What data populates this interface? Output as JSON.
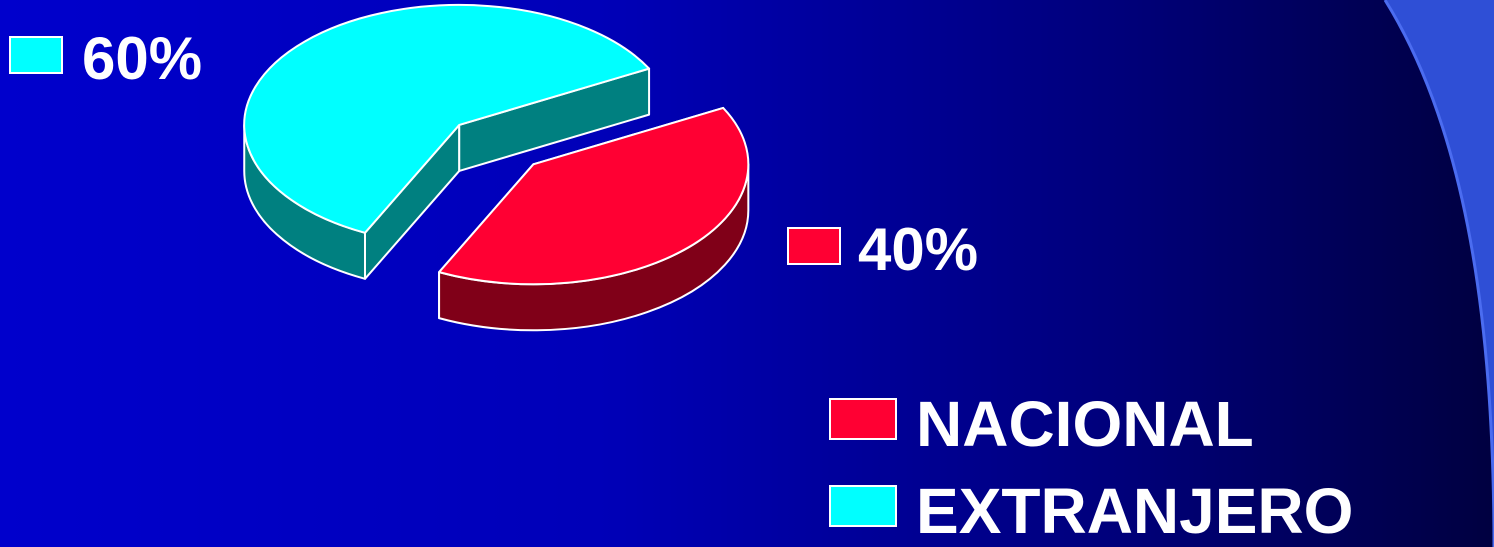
{
  "chart_data": {
    "type": "pie",
    "style": "3d-exploded",
    "slices": [
      {
        "name": "NACIONAL",
        "value": 40,
        "label": "40%",
        "color": "#ff0033",
        "side_color": "#800018"
      },
      {
        "name": "EXTRANJERO",
        "value": 60,
        "label": "60%",
        "color": "#00ffff",
        "side_color": "#008080"
      }
    ],
    "legend": {
      "position": "bottom-right"
    }
  },
  "colors": {
    "background": "#0000cc",
    "decoration": "#3355dd"
  }
}
